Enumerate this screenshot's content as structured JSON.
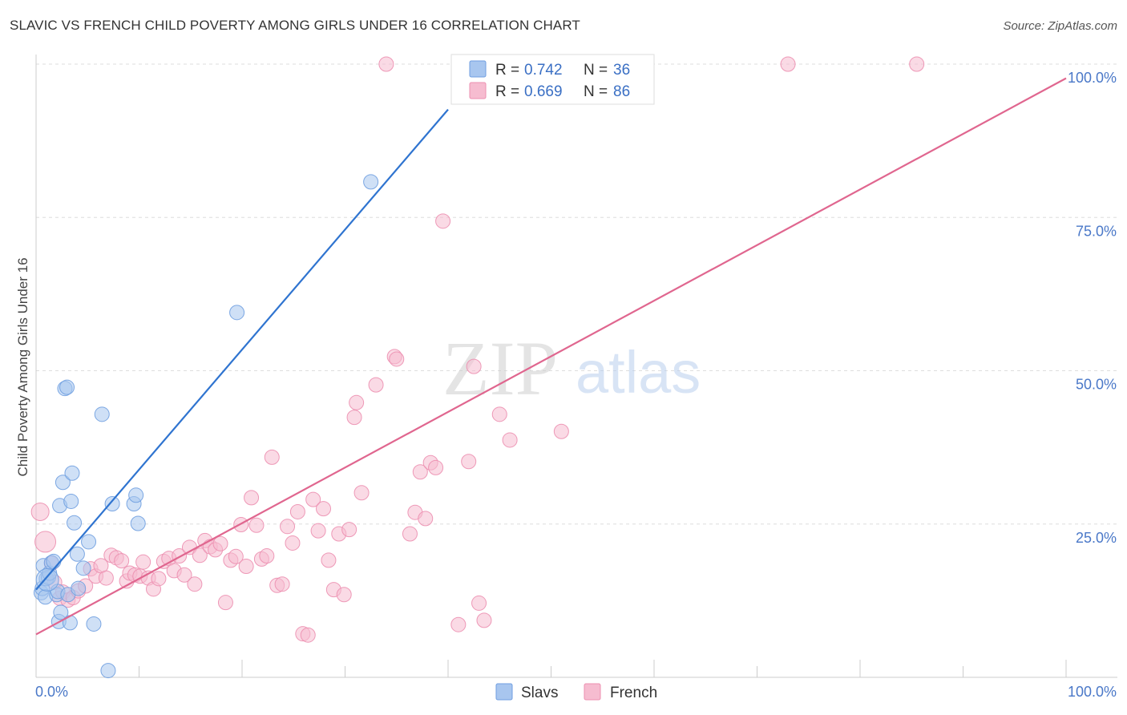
{
  "title": "SLAVIC VS FRENCH CHILD POVERTY AMONG GIRLS UNDER 16 CORRELATION CHART",
  "source": "Source: ZipAtlas.com",
  "watermark": {
    "zip": "ZIP",
    "atlas": "atlas"
  },
  "colors": {
    "slavs_fill": "#a8c6ef",
    "slavs_stroke": "#6f9ee0",
    "slavs_line": "#2f74d0",
    "french_fill": "#f6bcd0",
    "french_stroke": "#ec8fb0",
    "french_line": "#e0668f",
    "grid": "#dddddd",
    "axis_label": "#4a78c8"
  },
  "legend": {
    "r_label": "R =",
    "n_label": "N =",
    "slavs": {
      "r": "0.742",
      "n": "36"
    },
    "french": {
      "r": "0.669",
      "n": "86"
    }
  },
  "bottom_legend": {
    "slavs": "Slavs",
    "french": "French"
  },
  "chart_data": {
    "type": "scatter",
    "title": "SLAVIC VS FRENCH CHILD POVERTY AMONG GIRLS UNDER 16 CORRELATION CHART",
    "xlabel": "",
    "ylabel": "Child Poverty Among Girls Under 16",
    "xlim": [
      0,
      100
    ],
    "ylim": [
      0,
      100
    ],
    "x_tick_labels": {
      "min": "0.0%",
      "max": "100.0%"
    },
    "y_tick_labels": [
      "25.0%",
      "50.0%",
      "75.0%",
      "100.0%"
    ],
    "y_tick_values": [
      25,
      50,
      75,
      100
    ],
    "series": [
      {
        "name": "Slavs",
        "trend": {
          "x": [
            0,
            40
          ],
          "y": [
            14.3,
            92.6
          ]
        },
        "points": [
          [
            0.5,
            13.8
          ],
          [
            0.6,
            14.5
          ],
          [
            0.7,
            18.2
          ],
          [
            0.9,
            13.1
          ],
          [
            1.0,
            16.1
          ],
          [
            1.2,
            16.3
          ],
          [
            1.3,
            17.0
          ],
          [
            1.5,
            18.7
          ],
          [
            1.7,
            18.9
          ],
          [
            2.0,
            13.5
          ],
          [
            2.1,
            14.0
          ],
          [
            2.2,
            9.1
          ],
          [
            2.3,
            28.0
          ],
          [
            2.4,
            10.6
          ],
          [
            2.6,
            31.8
          ],
          [
            2.8,
            47.1
          ],
          [
            3.0,
            47.3
          ],
          [
            3.1,
            13.5
          ],
          [
            3.3,
            8.9
          ],
          [
            3.4,
            28.7
          ],
          [
            3.5,
            33.3
          ],
          [
            3.7,
            25.2
          ],
          [
            4.0,
            20.1
          ],
          [
            4.1,
            14.5
          ],
          [
            4.6,
            17.8
          ],
          [
            5.1,
            22.1
          ],
          [
            5.6,
            8.7
          ],
          [
            6.4,
            42.9
          ],
          [
            7.0,
            1.1
          ],
          [
            7.4,
            28.3
          ],
          [
            9.5,
            28.3
          ],
          [
            9.7,
            29.7
          ],
          [
            9.9,
            25.1
          ],
          [
            19.5,
            59.5
          ],
          [
            32.5,
            80.8
          ],
          [
            1.1,
            15.9
          ]
        ],
        "sizes": [
          9,
          9,
          9,
          9,
          9,
          9,
          9,
          9,
          9,
          9,
          9,
          9,
          9,
          9,
          9,
          9,
          9,
          9,
          9,
          9,
          9,
          9,
          9,
          9,
          9,
          9,
          9,
          9,
          9,
          9,
          9,
          9,
          9,
          9,
          9,
          14
        ]
      },
      {
        "name": "French",
        "trend": {
          "x": [
            0,
            100
          ],
          "y": [
            7.0,
            97.7
          ]
        },
        "points": [
          [
            0.4,
            27.0
          ],
          [
            0.9,
            22.1
          ],
          [
            1.5,
            18.6
          ],
          [
            1.8,
            15.5
          ],
          [
            2.3,
            12.9
          ],
          [
            2.6,
            13.9
          ],
          [
            3.1,
            12.6
          ],
          [
            3.6,
            13.0
          ],
          [
            4.1,
            14.1
          ],
          [
            4.8,
            14.9
          ],
          [
            5.3,
            17.7
          ],
          [
            5.8,
            16.5
          ],
          [
            6.3,
            18.2
          ],
          [
            6.8,
            16.2
          ],
          [
            7.3,
            19.9
          ],
          [
            7.8,
            19.5
          ],
          [
            8.3,
            19.0
          ],
          [
            8.8,
            15.7
          ],
          [
            9.1,
            17.0
          ],
          [
            9.6,
            16.7
          ],
          [
            10.1,
            16.5
          ],
          [
            10.4,
            18.8
          ],
          [
            10.9,
            16.2
          ],
          [
            11.4,
            14.4
          ],
          [
            11.9,
            16.1
          ],
          [
            12.4,
            18.9
          ],
          [
            12.9,
            19.4
          ],
          [
            13.4,
            17.4
          ],
          [
            13.9,
            19.8
          ],
          [
            14.4,
            16.7
          ],
          [
            14.9,
            21.2
          ],
          [
            15.4,
            15.2
          ],
          [
            15.9,
            19.9
          ],
          [
            16.4,
            22.3
          ],
          [
            16.9,
            21.3
          ],
          [
            17.4,
            20.8
          ],
          [
            17.9,
            21.8
          ],
          [
            18.4,
            12.2
          ],
          [
            18.9,
            19.1
          ],
          [
            19.4,
            19.7
          ],
          [
            19.9,
            24.9
          ],
          [
            20.4,
            18.1
          ],
          [
            20.9,
            29.3
          ],
          [
            21.4,
            24.8
          ],
          [
            21.9,
            19.3
          ],
          [
            22.4,
            19.8
          ],
          [
            22.9,
            35.9
          ],
          [
            23.4,
            15.0
          ],
          [
            23.9,
            15.2
          ],
          [
            24.4,
            24.6
          ],
          [
            24.9,
            21.9
          ],
          [
            25.4,
            27.0
          ],
          [
            25.9,
            7.1
          ],
          [
            26.4,
            6.9
          ],
          [
            26.9,
            29.0
          ],
          [
            27.4,
            23.9
          ],
          [
            27.9,
            27.5
          ],
          [
            28.4,
            19.1
          ],
          [
            28.9,
            14.3
          ],
          [
            29.4,
            23.4
          ],
          [
            29.9,
            13.5
          ],
          [
            30.4,
            24.1
          ],
          [
            30.9,
            42.4
          ],
          [
            31.1,
            44.8
          ],
          [
            31.6,
            30.1
          ],
          [
            33.0,
            47.7
          ],
          [
            34.0,
            100.0
          ],
          [
            34.8,
            52.3
          ],
          [
            35.0,
            51.9
          ],
          [
            36.3,
            23.4
          ],
          [
            36.8,
            26.9
          ],
          [
            37.3,
            33.5
          ],
          [
            37.8,
            25.9
          ],
          [
            38.3,
            35.0
          ],
          [
            38.8,
            34.2
          ],
          [
            39.5,
            74.4
          ],
          [
            41.0,
            8.6
          ],
          [
            42.0,
            35.2
          ],
          [
            42.5,
            50.7
          ],
          [
            43.0,
            12.1
          ],
          [
            43.5,
            9.3
          ],
          [
            45.0,
            42.9
          ],
          [
            46.0,
            38.7
          ],
          [
            51.0,
            40.1
          ],
          [
            73.0,
            100.0
          ],
          [
            85.5,
            100.0
          ]
        ],
        "sizes": [
          11,
          13,
          9,
          9,
          9,
          9,
          9,
          9,
          9,
          9,
          9,
          9,
          9,
          9,
          9,
          9,
          9,
          9,
          9,
          9,
          9,
          9,
          9,
          9,
          9,
          9,
          9,
          9,
          9,
          9,
          9,
          9,
          9,
          9,
          9,
          9,
          9,
          9,
          9,
          9,
          9,
          9,
          9,
          9,
          9,
          9,
          9,
          9,
          9,
          9,
          9,
          9,
          9,
          9,
          9,
          9,
          9,
          9,
          9,
          9,
          9,
          9,
          9,
          9,
          9,
          9,
          9,
          9,
          9,
          9,
          9,
          9,
          9,
          9,
          9,
          9,
          9,
          9,
          9,
          9,
          9,
          9,
          9,
          9,
          9,
          9
        ]
      }
    ]
  }
}
